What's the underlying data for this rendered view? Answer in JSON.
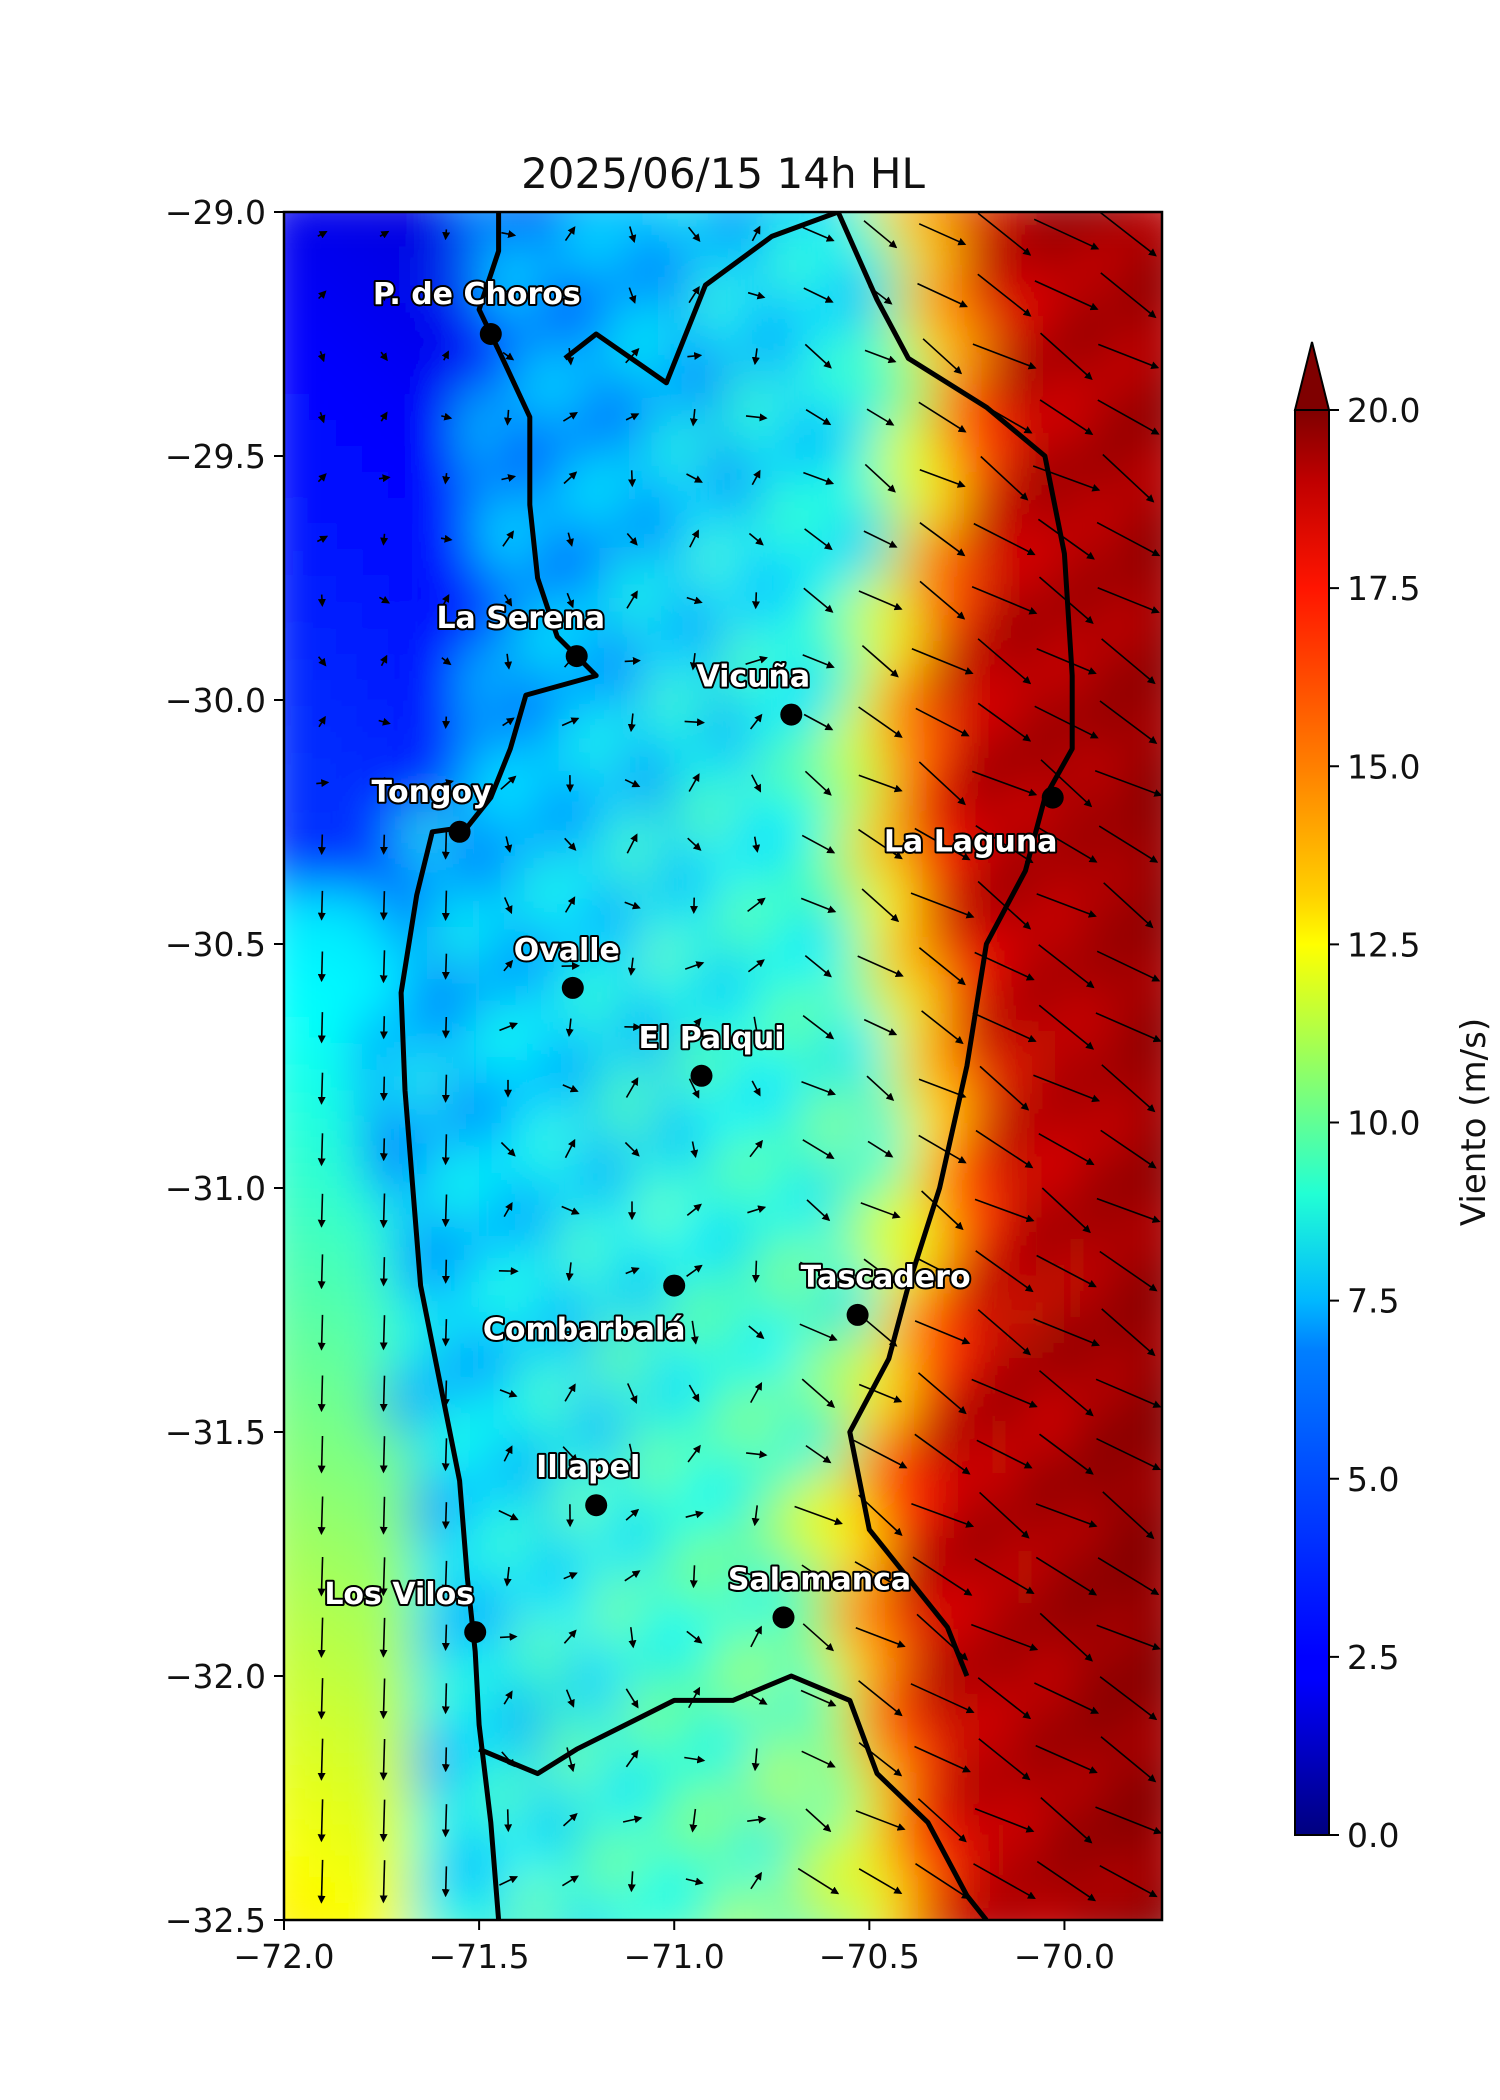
{
  "map": {
    "title": "2025/06/15 14h HL",
    "variable": "wind speed",
    "x_ticks": [
      "−72.0",
      "−71.5",
      "−71.0",
      "−70.5",
      "−70.0"
    ],
    "y_ticks": [
      "−29.0",
      "−29.5",
      "−30.0",
      "−30.5",
      "−31.0",
      "−31.5",
      "−32.0",
      "−32.5"
    ],
    "cities": [
      {
        "name": "P. de Choros",
        "lon": -71.47,
        "lat": -29.25
      },
      {
        "name": "La Serena",
        "lon": -71.25,
        "lat": -29.91
      },
      {
        "name": "Vicuña",
        "lon": -70.7,
        "lat": -30.03
      },
      {
        "name": "Tongoy",
        "lon": -71.55,
        "lat": -30.27
      },
      {
        "name": "La Laguna",
        "lon": -70.03,
        "lat": -30.2
      },
      {
        "name": "Ovalle",
        "lon": -71.26,
        "lat": -30.59
      },
      {
        "name": "El Palqui",
        "lon": -70.93,
        "lat": -30.77
      },
      {
        "name": "Combarbalá",
        "lon": -71.0,
        "lat": -31.2
      },
      {
        "name": "Tascadero",
        "lon": -70.53,
        "lat": -31.26
      },
      {
        "name": "Illapel",
        "lon": -71.2,
        "lat": -31.65
      },
      {
        "name": "Los Vilos",
        "lon": -71.51,
        "lat": -31.91
      },
      {
        "name": "Salamanca",
        "lon": -70.72,
        "lat": -31.88
      }
    ]
  },
  "colorbar": {
    "label": "Viento (m/s)",
    "ticks": [
      "0.0",
      "2.5",
      "5.0",
      "7.5",
      "10.0",
      "12.5",
      "15.0",
      "17.5",
      "20.0"
    ],
    "min": 0,
    "max": 20,
    "extend": "max",
    "colormap": "jet"
  }
}
